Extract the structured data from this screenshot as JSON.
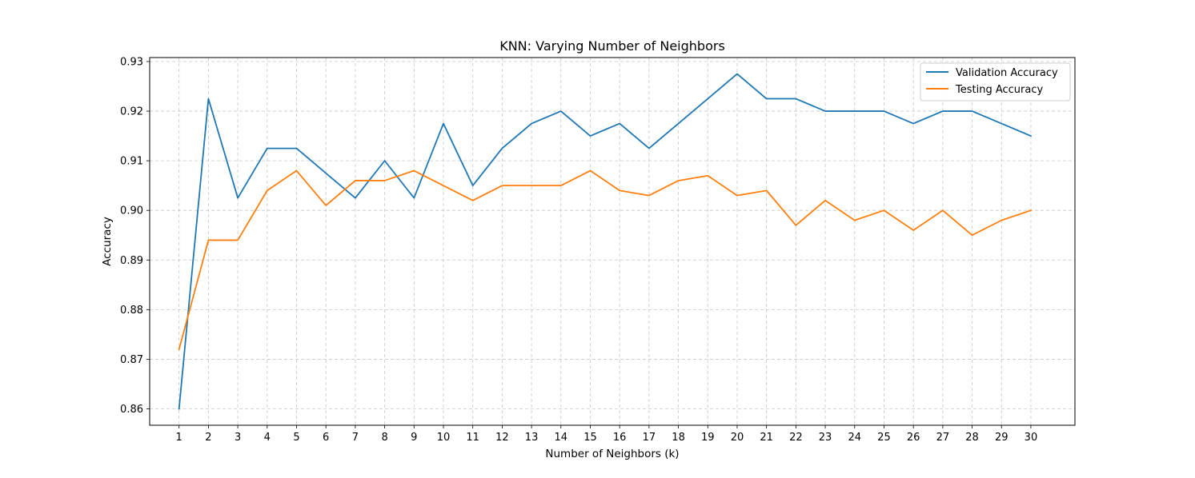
{
  "chart_data": {
    "type": "line",
    "title": "KNN: Varying Number of Neighbors",
    "xlabel": "Number of Neighbors (k)",
    "ylabel": "Accuracy",
    "x": [
      1,
      2,
      3,
      4,
      5,
      6,
      7,
      8,
      9,
      10,
      11,
      12,
      13,
      14,
      15,
      16,
      17,
      18,
      19,
      20,
      21,
      22,
      23,
      24,
      25,
      26,
      27,
      28,
      29,
      30
    ],
    "x_ticks": [
      "1",
      "2",
      "3",
      "4",
      "5",
      "6",
      "7",
      "8",
      "9",
      "10",
      "11",
      "12",
      "13",
      "14",
      "15",
      "16",
      "17",
      "18",
      "19",
      "20",
      "21",
      "22",
      "23",
      "24",
      "25",
      "26",
      "27",
      "28",
      "29",
      "30"
    ],
    "y_ticks": [
      "0.86",
      "0.87",
      "0.88",
      "0.89",
      "0.90",
      "0.91",
      "0.92",
      "0.93"
    ],
    "xlim": [
      0.0,
      31.5
    ],
    "ylim": [
      0.8567,
      0.9308
    ],
    "grid": true,
    "grid_style": "dashed",
    "legend_position": "top-right",
    "series": [
      {
        "name": "Validation Accuracy",
        "color": "#1f77b4",
        "values": [
          0.86,
          0.9225,
          0.9025,
          0.9125,
          0.9125,
          0.9075,
          0.9025,
          0.91,
          0.9025,
          0.9175,
          0.905,
          0.9125,
          0.9175,
          0.92,
          0.915,
          0.9175,
          0.9125,
          0.9175,
          0.9225,
          0.9275,
          0.9225,
          0.9225,
          0.92,
          0.92,
          0.92,
          0.9175,
          0.92,
          0.92,
          0.9175,
          0.915
        ]
      },
      {
        "name": "Testing Accuracy",
        "color": "#ff7f0e",
        "values": [
          0.872,
          0.894,
          0.894,
          0.904,
          0.908,
          0.901,
          0.906,
          0.906,
          0.908,
          0.905,
          0.902,
          0.905,
          0.905,
          0.905,
          0.908,
          0.904,
          0.903,
          0.906,
          0.907,
          0.903,
          0.904,
          0.897,
          0.902,
          0.898,
          0.9,
          0.896,
          0.9,
          0.895,
          0.898,
          0.9
        ]
      }
    ]
  }
}
